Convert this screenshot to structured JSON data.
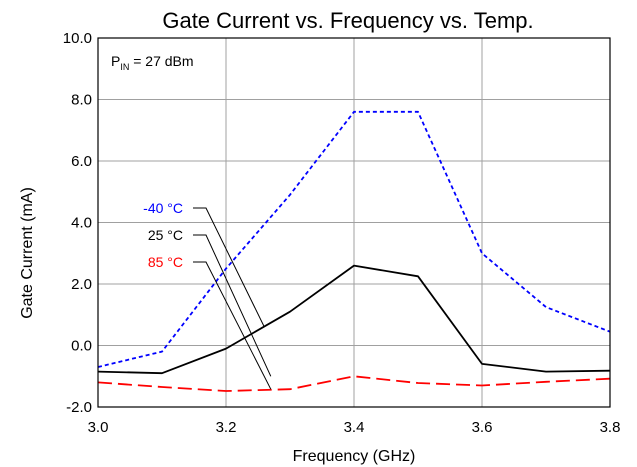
{
  "chart_data": {
    "type": "line",
    "title": "Gate Current vs. Frequency vs. Temp.",
    "xlabel": "Frequency (GHz)",
    "ylabel": "Gate Current (mA)",
    "xlim": [
      3.0,
      3.8
    ],
    "ylim": [
      -2.0,
      10.0
    ],
    "x_ticks": [
      "3.0",
      "3.2",
      "3.4",
      "3.6",
      "3.8"
    ],
    "y_ticks": [
      "-2.0",
      "0.0",
      "2.0",
      "4.0",
      "6.0",
      "8.0",
      "10.0"
    ],
    "grid": true,
    "annotation": {
      "prefix": "P",
      "subscript": "IN",
      "suffix": " = 27 dBm"
    },
    "x": [
      3.0,
      3.1,
      3.2,
      3.3,
      3.4,
      3.5,
      3.6,
      3.7,
      3.8
    ],
    "series": [
      {
        "name": "-40 °C",
        "color": "#0000ff",
        "dash": "dotted",
        "values": [
          -0.7,
          -0.2,
          2.5,
          4.9,
          7.6,
          7.6,
          3.0,
          1.25,
          0.45
        ]
      },
      {
        "name": "25 °C",
        "color": "#000000",
        "dash": "solid",
        "values": [
          -0.85,
          -0.9,
          -0.1,
          1.1,
          2.6,
          2.25,
          -0.6,
          -0.85,
          -0.82
        ]
      },
      {
        "name": "85 °C",
        "color": "#ff0000",
        "dash": "dashed",
        "values": [
          -1.2,
          -1.35,
          -1.48,
          -1.42,
          -1.0,
          -1.22,
          -1.3,
          -1.18,
          -1.08
        ]
      }
    ],
    "legend_position": "left, with leader lines to curves"
  }
}
